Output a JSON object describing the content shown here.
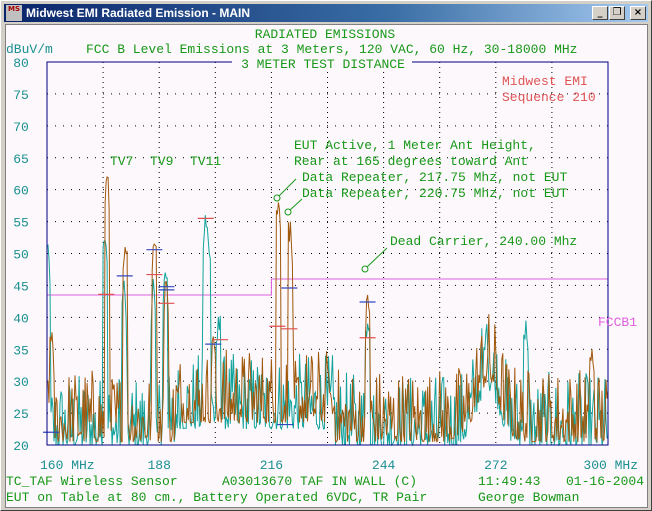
{
  "window": {
    "title": "Midwest EMI Radiated Emission - MAIN",
    "icon_text": "MS",
    "buttons": {
      "minimize": "_",
      "restore": "❐",
      "close": "×"
    }
  },
  "header": {
    "title": "RADIATED EMISSIONS",
    "subtitle": "FCC B Level Emissions at 3 Meters, 120 VAC, 60 Hz, 30-18000 MHz",
    "distance": "3 METER TEST DISTANCE",
    "unit": "dBuV/m"
  },
  "brand": {
    "line1": "Midwest EMI",
    "line2": "Sequence 210"
  },
  "annotations": {
    "tv7": "TV7",
    "tv9": "TV9",
    "tv11": "TV11",
    "eut1": "EUT Active, 1 Meter Ant Height,",
    "eut2": "Rear at 165 degrees toward Ant",
    "rep1": "Data Repeater, 217.75 Mhz, not EUT",
    "rep2": "Data Repeater, 220.75 Mhz, not EUT",
    "dead": "Dead Carrier, 240.00 Mhz",
    "limit_label": "FCCB1"
  },
  "footer": {
    "line1_left": "TC_TAF Wireless Sensor",
    "line1_mid": "A03013670 TAF IN WALL (C)",
    "time": "11:49:43",
    "date": "01-16-2004",
    "line2_left": "EUT on Table at 80 cm., Battery Operated 6VDC, TR Pair",
    "operator": "George Bowman"
  },
  "colors": {
    "trace_vertical": "#12a49c",
    "trace_horizontal": "#a0580c",
    "limit": "#e060e0",
    "marker_red": "#e05050",
    "marker_blue": "#3448c0",
    "frame": "#000080"
  },
  "chart_data": {
    "type": "line",
    "title": "RADIATED EMISSIONS",
    "xlabel": "MHz",
    "ylabel": "dBuV/m",
    "xlim": [
      160,
      300
    ],
    "ylim": [
      20,
      80
    ],
    "grid": true,
    "x_ticks": [
      160,
      174,
      188,
      202,
      216,
      230,
      244,
      258,
      272,
      286,
      300
    ],
    "x_tick_labels": [
      "160 MHz",
      "188",
      "216",
      "244",
      "272",
      "300 MHz"
    ],
    "x_tick_label_values": [
      160,
      188,
      216,
      244,
      272,
      300
    ],
    "y_ticks": [
      "80",
      "75",
      "70",
      "65",
      "60",
      "55",
      "50",
      "45",
      "40",
      "35",
      "30",
      "25",
      "20"
    ],
    "limit": {
      "name": "FCCB1",
      "segments": [
        {
          "x": [
            160,
            216
          ],
          "y": 43.5
        },
        {
          "x": [
            216,
            300
          ],
          "y": 46.0
        }
      ]
    },
    "series": [
      {
        "name": "teal trace",
        "noise_floor_dB": 23,
        "peaks": [
          {
            "f": 175,
            "dB": 62
          },
          {
            "f": 179.5,
            "dB": 51
          },
          {
            "f": 186.8,
            "dB": 51.5
          },
          {
            "f": 189.8,
            "dB": 46
          },
          {
            "f": 201.5,
            "dB": 37
          },
          {
            "f": 217.75,
            "dB": 58
          },
          {
            "f": 220.75,
            "dB": 55
          },
          {
            "f": 240,
            "dB": 43.5
          },
          {
            "f": 161.2,
            "dB": 38
          },
          {
            "f": 230,
            "dB": 32
          },
          {
            "f": 296,
            "dB": 35
          }
        ]
      },
      {
        "name": "brown trace",
        "noise_floor_dB": 22,
        "peaks": [
          {
            "f": 174.5,
            "dB": 52
          },
          {
            "f": 179.2,
            "dB": 46
          },
          {
            "f": 186.5,
            "dB": 46
          },
          {
            "f": 189.5,
            "dB": 47
          },
          {
            "f": 199.5,
            "dB": 56
          },
          {
            "f": 200.2,
            "dB": 52
          },
          {
            "f": 202.8,
            "dB": 40.5
          },
          {
            "f": 240,
            "dB": 39
          },
          {
            "f": 269.5,
            "dB": 37.5
          },
          {
            "f": 279.5,
            "dB": 39.5
          },
          {
            "f": 160.2,
            "dB": 52
          }
        ]
      }
    ],
    "markers": [
      {
        "f": 174.8,
        "dB": 43.6,
        "color": "red"
      },
      {
        "f": 179.4,
        "dB": 46.5,
        "color": "blue"
      },
      {
        "f": 186.8,
        "dB": 50.6,
        "color": "blue"
      },
      {
        "f": 186.8,
        "dB": 46.7,
        "color": "red"
      },
      {
        "f": 189.8,
        "dB": 44.8,
        "color": "blue"
      },
      {
        "f": 189.8,
        "dB": 44.3,
        "color": "blue"
      },
      {
        "f": 189.8,
        "dB": 42.2,
        "color": "red"
      },
      {
        "f": 199.6,
        "dB": 55.5,
        "color": "red"
      },
      {
        "f": 201.5,
        "dB": 35.8,
        "color": "blue"
      },
      {
        "f": 203.2,
        "dB": 36.5,
        "color": "red"
      },
      {
        "f": 217.5,
        "dB": 38.6,
        "color": "red"
      },
      {
        "f": 220.5,
        "dB": 44.6,
        "color": "blue"
      },
      {
        "f": 220.5,
        "dB": 38.2,
        "color": "red"
      },
      {
        "f": 219.5,
        "dB": 23.2,
        "color": "blue"
      },
      {
        "f": 240,
        "dB": 42.4,
        "color": "blue"
      },
      {
        "f": 240,
        "dB": 36.8,
        "color": "red"
      },
      {
        "f": 161,
        "dB": 22,
        "color": "blue"
      }
    ]
  }
}
